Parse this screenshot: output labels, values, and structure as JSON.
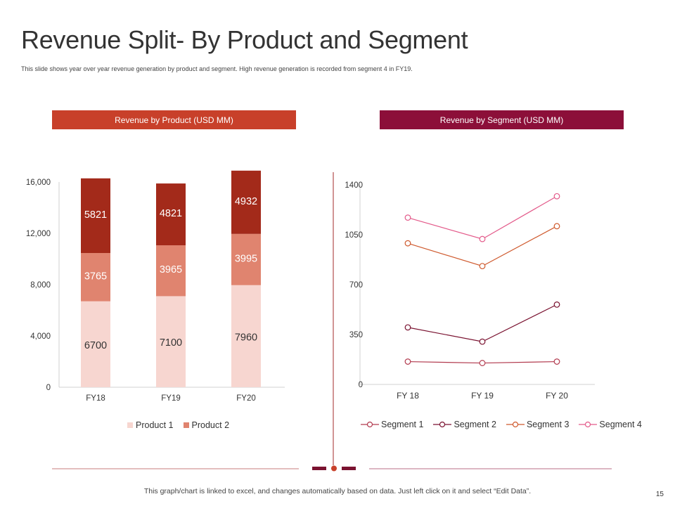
{
  "slide": {
    "title": "Revenue Split- By Product and Segment",
    "subtitle": "This slide shows year over year revenue generation by product and segment. High revenue generation is recorded from segment 4 in FY19.",
    "footer_note": "This graph/chart is linked to excel, and changes automatically based on data. Just left click on it and select “Edit Data”.",
    "page_number": "15"
  },
  "colors": {
    "banner_left": "#c8402a",
    "banner_right": "#8c0f39",
    "product1": "#f7d6d0",
    "product2": "#e0846f",
    "product3": "#a32a1a",
    "segment1": "#b23a4e",
    "segment2": "#7a1230",
    "segment3": "#cf5a2e",
    "segment4": "#e35a8a"
  },
  "chart_data": [
    {
      "type": "bar",
      "stacked": true,
      "title": "Revenue by Product (USD MM)",
      "categories": [
        "FY18",
        "FY19",
        "FY20"
      ],
      "series": [
        {
          "name": "Product 1",
          "values": [
            6700,
            7100,
            7960
          ]
        },
        {
          "name": "Product 2",
          "values": [
            3765,
            3965,
            3995
          ]
        },
        {
          "name": "",
          "values": [
            5821,
            4821,
            4932
          ]
        }
      ],
      "ylim": [
        0,
        16000
      ],
      "yticks": [
        "0",
        "4,000",
        "8,000",
        "12,000",
        "16,000"
      ],
      "legend": [
        "Product 1",
        "Product 2"
      ],
      "legend_position": "bottom"
    },
    {
      "type": "line",
      "title": "Revenue by Segment (USD MM)",
      "categories": [
        "FY 18",
        "FY 19",
        "FY 20"
      ],
      "series": [
        {
          "name": "Segment 1",
          "values": [
            160,
            150,
            160
          ]
        },
        {
          "name": "Segment 2",
          "values": [
            400,
            300,
            560
          ]
        },
        {
          "name": "Segment 3",
          "values": [
            990,
            830,
            1110
          ]
        },
        {
          "name": "Segment 4",
          "values": [
            1170,
            1020,
            1320
          ]
        }
      ],
      "ylim": [
        0,
        1400
      ],
      "yticks": [
        "0",
        "350",
        "700",
        "1050",
        "1400"
      ],
      "legend_position": "bottom"
    }
  ]
}
